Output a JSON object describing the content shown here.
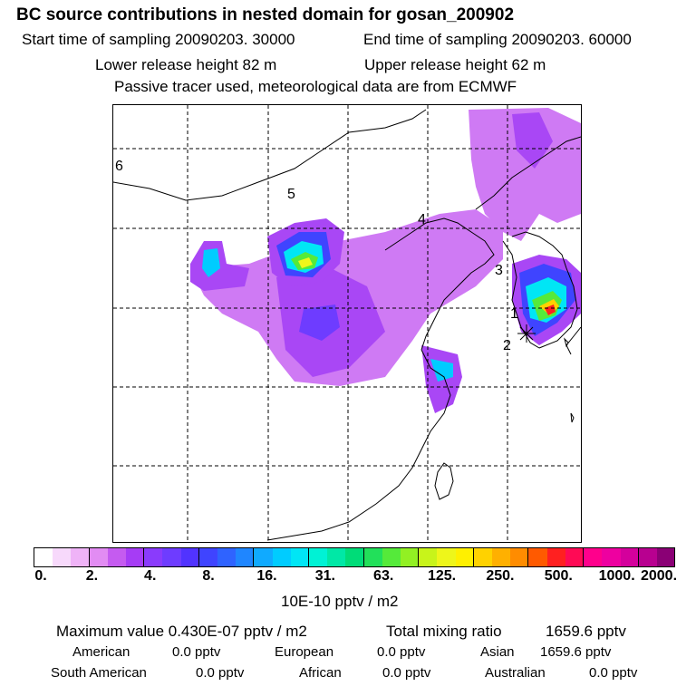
{
  "header": {
    "title": "BC  source contributions in nested domain for gosan_200902",
    "start_time": "Start time of sampling 20090203. 30000",
    "end_time": "End time of sampling 20090203. 60000",
    "lower_height": "Lower release height   82 m",
    "upper_height": "Upper release height   62 m",
    "tracer_note": "Passive tracer used, meteorological data are from ECMWF"
  },
  "map": {
    "region_labels": [
      "6",
      "5",
      "4",
      "3",
      "1",
      "2"
    ]
  },
  "chart_data": {
    "type": "heatmap",
    "title": "BC  source contributions in nested domain for gosan_200902",
    "colorbar": {
      "unit": "10E-10 pptv / m2",
      "ticks": [
        "0.",
        "2.",
        "4.",
        "8.",
        "16.",
        "31.",
        "63.",
        "125.",
        "250.",
        "500.",
        "1000.",
        "2000."
      ],
      "colors": [
        "#ffffff",
        "#f7d9fb",
        "#efb3f7",
        "#e28cf3",
        "#c55bf0",
        "#a63cf5",
        "#8a3bfc",
        "#6e3cff",
        "#5133ff",
        "#3f44ff",
        "#2f63ff",
        "#1f86ff",
        "#10aaff",
        "#00ccff",
        "#00e6f5",
        "#00f2d5",
        "#00e8a6",
        "#00dc78",
        "#22e05a",
        "#55ea3a",
        "#92f023",
        "#c8f41a",
        "#eef61a",
        "#fff000",
        "#ffd200",
        "#ffb000",
        "#ff8c00",
        "#ff5a00",
        "#ff2020",
        "#ff0a55",
        "#ff008c",
        "#ee00a0",
        "#d4009c",
        "#b80090",
        "#8a0075"
      ]
    }
  },
  "summary": {
    "maximum": "Maximum value  0.430E-07 pptv / m2",
    "total": "Total mixing ratio",
    "total_value": "1659.6 pptv",
    "rows": [
      [
        {
          "label": "American",
          "value": "0.0 pptv"
        },
        {
          "label": "European",
          "value": "0.0 pptv"
        },
        {
          "label": "Asian",
          "value": "1659.6 pptv"
        }
      ],
      [
        {
          "label": "South American",
          "value": "0.0 pptv"
        },
        {
          "label": "African",
          "value": "0.0 pptv"
        },
        {
          "label": "Australian",
          "value": "0.0 pptv"
        }
      ]
    ]
  }
}
